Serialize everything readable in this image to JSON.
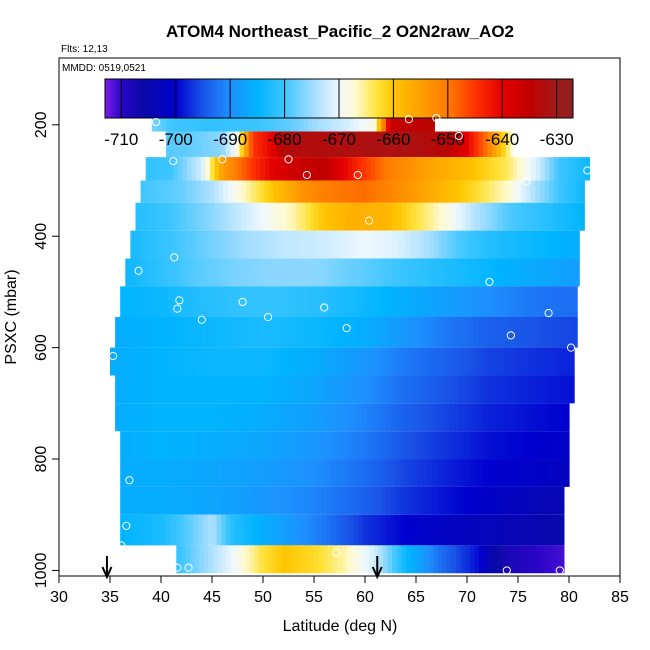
{
  "chart_data": {
    "type": "heatmap",
    "title": "ATOM4 Northeast_Pacific_2 O2N2raw_AO2",
    "flights_note": "Flts: 12,13",
    "date_note": "MMDD: 0519,0521",
    "xlabel": "Latitude (deg N)",
    "ylabel": "PSXC (mbar)",
    "xlim": [
      30,
      85
    ],
    "ylim": [
      1010,
      80
    ],
    "x_ticks": [
      30,
      35,
      40,
      45,
      50,
      55,
      60,
      65,
      70,
      75,
      80,
      85
    ],
    "y_ticks": [
      200,
      400,
      600,
      800,
      1000
    ],
    "colorbar": {
      "range": [
        -713,
        -627
      ],
      "ticks": [
        -710,
        -700,
        -690,
        -680,
        -670,
        -660,
        -650,
        -640,
        -630
      ],
      "stops": [
        {
          "v": -713,
          "c": "#7a1fe6"
        },
        {
          "v": -710,
          "c": "#2a05c8"
        },
        {
          "v": -706,
          "c": "#0a0aa6"
        },
        {
          "v": -700,
          "c": "#0000cf"
        },
        {
          "v": -695,
          "c": "#1a55e8"
        },
        {
          "v": -690,
          "c": "#1e90ff"
        },
        {
          "v": -685,
          "c": "#00b4ff"
        },
        {
          "v": -680,
          "c": "#3ec5ff"
        },
        {
          "v": -675,
          "c": "#9fdcff"
        },
        {
          "v": -670,
          "c": "#eef8ff"
        },
        {
          "v": -667,
          "c": "#fffad0"
        },
        {
          "v": -663,
          "c": "#ffe23a"
        },
        {
          "v": -660,
          "c": "#ffc400"
        },
        {
          "v": -655,
          "c": "#ffa000"
        },
        {
          "v": -650,
          "c": "#ff7a00"
        },
        {
          "v": -645,
          "c": "#ff3300"
        },
        {
          "v": -640,
          "c": "#e30000"
        },
        {
          "v": -635,
          "c": "#c00000"
        },
        {
          "v": -630,
          "c": "#a11a1a"
        },
        {
          "v": -627,
          "c": "#8e2020"
        }
      ]
    },
    "bands": [
      {
        "p_top": 170,
        "p_bot": 212,
        "x_start": 39.1,
        "x_end": 66.8,
        "values": [
          [
            39.1,
            -677
          ],
          [
            41,
            -680
          ],
          [
            45,
            -681
          ],
          [
            50,
            -680
          ],
          [
            53,
            -678
          ],
          [
            55,
            -675
          ],
          [
            58,
            -672
          ],
          [
            61,
            -668
          ],
          [
            62.5,
            -636
          ],
          [
            66.8,
            -634
          ]
        ]
      },
      {
        "p_top": 212,
        "p_bot": 258,
        "x_start": 40.5,
        "x_end": 74.5,
        "values": [
          [
            40.5,
            -679
          ],
          [
            43,
            -678
          ],
          [
            46,
            -676
          ],
          [
            47.5,
            -668
          ],
          [
            49,
            -645
          ],
          [
            51,
            -640
          ],
          [
            52,
            -633
          ],
          [
            60,
            -632
          ],
          [
            65,
            -632
          ],
          [
            68,
            -634
          ],
          [
            70,
            -640
          ],
          [
            72,
            -650
          ],
          [
            74.5,
            -668
          ]
        ]
      },
      {
        "p_top": 258,
        "p_bot": 300,
        "x_start": 38.5,
        "x_end": 82,
        "values": [
          [
            38.5,
            -681
          ],
          [
            41,
            -680
          ],
          [
            44,
            -672
          ],
          [
            46,
            -655
          ],
          [
            49,
            -645
          ],
          [
            51,
            -640
          ],
          [
            53,
            -637
          ],
          [
            56,
            -635
          ],
          [
            59,
            -643
          ],
          [
            62,
            -650
          ],
          [
            66,
            -655
          ],
          [
            70,
            -659
          ],
          [
            74,
            -664
          ],
          [
            77,
            -672
          ],
          [
            79,
            -680
          ],
          [
            82,
            -684
          ]
        ]
      },
      {
        "p_top": 300,
        "p_bot": 340,
        "x_start": 38,
        "x_end": 81.5,
        "values": [
          [
            38,
            -680
          ],
          [
            42,
            -678
          ],
          [
            45,
            -674
          ],
          [
            48,
            -667
          ],
          [
            51,
            -660
          ],
          [
            54,
            -653
          ],
          [
            57,
            -650
          ],
          [
            60,
            -649
          ],
          [
            63,
            -652
          ],
          [
            66,
            -656
          ],
          [
            70,
            -661
          ],
          [
            74,
            -667
          ],
          [
            77,
            -675
          ],
          [
            79,
            -680
          ],
          [
            81.5,
            -684
          ]
        ]
      },
      {
        "p_top": 340,
        "p_bot": 390,
        "x_start": 37.5,
        "x_end": 81.5,
        "values": [
          [
            37.5,
            -682
          ],
          [
            41,
            -680
          ],
          [
            45,
            -676
          ],
          [
            49,
            -671
          ],
          [
            53,
            -666
          ],
          [
            56,
            -660
          ],
          [
            59,
            -657
          ],
          [
            62,
            -658
          ],
          [
            65,
            -663
          ],
          [
            68,
            -668
          ],
          [
            71,
            -674
          ],
          [
            74,
            -679
          ],
          [
            78,
            -682
          ],
          [
            81.5,
            -685
          ]
        ]
      },
      {
        "p_top": 390,
        "p_bot": 440,
        "x_start": 37,
        "x_end": 81,
        "values": [
          [
            37,
            -683
          ],
          [
            40,
            -681
          ],
          [
            44,
            -678
          ],
          [
            48,
            -675
          ],
          [
            52,
            -673
          ],
          [
            56,
            -672
          ],
          [
            60,
            -670
          ],
          [
            63,
            -671
          ],
          [
            66,
            -674
          ],
          [
            69,
            -679
          ],
          [
            72,
            -682
          ],
          [
            76,
            -684
          ],
          [
            81,
            -686
          ]
        ]
      },
      {
        "p_top": 440,
        "p_bot": 490,
        "x_start": 36.5,
        "x_end": 81,
        "values": [
          [
            36.5,
            -684
          ],
          [
            39,
            -682
          ],
          [
            43,
            -679
          ],
          [
            47,
            -677
          ],
          [
            51,
            -676
          ],
          [
            55,
            -676
          ],
          [
            59,
            -678
          ],
          [
            63,
            -680
          ],
          [
            67,
            -682
          ],
          [
            71,
            -684
          ],
          [
            75,
            -686
          ],
          [
            81,
            -688
          ]
        ]
      },
      {
        "p_top": 490,
        "p_bot": 545,
        "x_start": 36,
        "x_end": 80.8,
        "values": [
          [
            36,
            -685
          ],
          [
            40,
            -684
          ],
          [
            44,
            -682
          ],
          [
            48,
            -681
          ],
          [
            52,
            -681
          ],
          [
            56,
            -682
          ],
          [
            60,
            -684
          ],
          [
            64,
            -686
          ],
          [
            68,
            -688
          ],
          [
            72,
            -690
          ],
          [
            76,
            -692
          ],
          [
            80.8,
            -693
          ]
        ]
      },
      {
        "p_top": 545,
        "p_bot": 600,
        "x_start": 35.5,
        "x_end": 80.8,
        "values": [
          [
            35.5,
            -686
          ],
          [
            40,
            -685
          ],
          [
            45,
            -684
          ],
          [
            50,
            -683
          ],
          [
            55,
            -684
          ],
          [
            60,
            -686
          ],
          [
            64,
            -689
          ],
          [
            68,
            -692
          ],
          [
            72,
            -694
          ],
          [
            76,
            -695
          ],
          [
            80.8,
            -696
          ]
        ]
      },
      {
        "p_top": 600,
        "p_bot": 650,
        "x_start": 35,
        "x_end": 80.5,
        "values": [
          [
            35,
            -686
          ],
          [
            40,
            -685
          ],
          [
            45,
            -684
          ],
          [
            50,
            -684
          ],
          [
            55,
            -686
          ],
          [
            60,
            -689
          ],
          [
            64,
            -692
          ],
          [
            68,
            -694
          ],
          [
            72,
            -696
          ],
          [
            76,
            -697
          ],
          [
            80.5,
            -698
          ]
        ]
      },
      {
        "p_top": 650,
        "p_bot": 700,
        "x_start": 35.5,
        "x_end": 80.5,
        "values": [
          [
            35.5,
            -686
          ],
          [
            40,
            -685
          ],
          [
            45,
            -685
          ],
          [
            50,
            -685
          ],
          [
            55,
            -687
          ],
          [
            60,
            -690
          ],
          [
            64,
            -693
          ],
          [
            68,
            -695
          ],
          [
            72,
            -697
          ],
          [
            76,
            -698
          ],
          [
            80.5,
            -699
          ]
        ]
      },
      {
        "p_top": 700,
        "p_bot": 750,
        "x_start": 35.5,
        "x_end": 80,
        "values": [
          [
            35.5,
            -686
          ],
          [
            40,
            -685
          ],
          [
            45,
            -685
          ],
          [
            50,
            -686
          ],
          [
            55,
            -688
          ],
          [
            60,
            -691
          ],
          [
            64,
            -694
          ],
          [
            68,
            -696
          ],
          [
            72,
            -698
          ],
          [
            76,
            -699
          ],
          [
            80,
            -700
          ]
        ]
      },
      {
        "p_top": 750,
        "p_bot": 800,
        "x_start": 36,
        "x_end": 80,
        "values": [
          [
            36,
            -686
          ],
          [
            40,
            -685
          ],
          [
            45,
            -686
          ],
          [
            50,
            -687
          ],
          [
            55,
            -689
          ],
          [
            60,
            -692
          ],
          [
            64,
            -695
          ],
          [
            68,
            -697
          ],
          [
            72,
            -699
          ],
          [
            76,
            -700
          ],
          [
            80,
            -701
          ]
        ]
      },
      {
        "p_top": 800,
        "p_bot": 850,
        "x_start": 36,
        "x_end": 80,
        "values": [
          [
            36,
            -686
          ],
          [
            40,
            -686
          ],
          [
            45,
            -687
          ],
          [
            50,
            -688
          ],
          [
            55,
            -690
          ],
          [
            60,
            -693
          ],
          [
            64,
            -696
          ],
          [
            68,
            -698
          ],
          [
            72,
            -700
          ],
          [
            76,
            -701
          ],
          [
            80,
            -702
          ]
        ]
      },
      {
        "p_top": 850,
        "p_bot": 900,
        "x_start": 36,
        "x_end": 79.5,
        "values": [
          [
            36,
            -686
          ],
          [
            40,
            -686
          ],
          [
            45,
            -687
          ],
          [
            50,
            -689
          ],
          [
            55,
            -691
          ],
          [
            60,
            -694
          ],
          [
            64,
            -697
          ],
          [
            68,
            -699
          ],
          [
            72,
            -701
          ],
          [
            76,
            -703
          ],
          [
            79.5,
            -704
          ]
        ]
      },
      {
        "p_top": 900,
        "p_bot": 955,
        "x_start": 36,
        "x_end": 79.5,
        "values": [
          [
            36,
            -685
          ],
          [
            40,
            -683
          ],
          [
            43,
            -678
          ],
          [
            45,
            -674
          ],
          [
            47,
            -682
          ],
          [
            50,
            -686
          ],
          [
            53,
            -689
          ],
          [
            56,
            -692
          ],
          [
            60,
            -697
          ],
          [
            64,
            -700
          ],
          [
            68,
            -702
          ],
          [
            72,
            -703
          ],
          [
            76,
            -704
          ],
          [
            79.5,
            -705
          ]
        ]
      },
      {
        "p_top": 955,
        "p_bot": 1005,
        "x_start": 41.5,
        "x_end": 79.5,
        "values": [
          [
            41.5,
            -681
          ],
          [
            44,
            -676
          ],
          [
            47,
            -670
          ],
          [
            50,
            -663
          ],
          [
            52,
            -660
          ],
          [
            55,
            -662
          ],
          [
            58,
            -666
          ],
          [
            61,
            -672
          ],
          [
            64,
            -684
          ],
          [
            67,
            -692
          ],
          [
            71,
            -699
          ],
          [
            72.5,
            -705
          ],
          [
            74,
            -708
          ],
          [
            77,
            -710
          ],
          [
            79.5,
            -711
          ]
        ]
      }
    ],
    "points": [
      [
        39.5,
        195
      ],
      [
        41.2,
        265
      ],
      [
        46,
        262
      ],
      [
        52.5,
        262
      ],
      [
        54.3,
        290
      ],
      [
        59.3,
        290
      ],
      [
        64.3,
        190
      ],
      [
        67,
        188
      ],
      [
        69.2,
        220
      ],
      [
        75.8,
        302
      ],
      [
        81.8,
        282
      ],
      [
        60.4,
        372
      ],
      [
        41.3,
        438
      ],
      [
        37.8,
        462
      ],
      [
        41.8,
        515
      ],
      [
        41.6,
        530
      ],
      [
        44,
        550
      ],
      [
        48,
        518
      ],
      [
        50.5,
        545
      ],
      [
        56,
        528
      ],
      [
        58.2,
        565
      ],
      [
        72.2,
        482
      ],
      [
        78,
        538
      ],
      [
        74.3,
        578
      ],
      [
        80.2,
        600
      ],
      [
        35.3,
        615
      ],
      [
        36.9,
        838
      ],
      [
        36.6,
        920
      ],
      [
        36.1,
        955
      ],
      [
        41.6,
        995
      ],
      [
        42.7,
        995
      ],
      [
        57.2,
        968
      ],
      [
        73.9,
        1000
      ],
      [
        79.1,
        1000
      ]
    ],
    "arrows": [
      34.7,
      61.2
    ]
  }
}
